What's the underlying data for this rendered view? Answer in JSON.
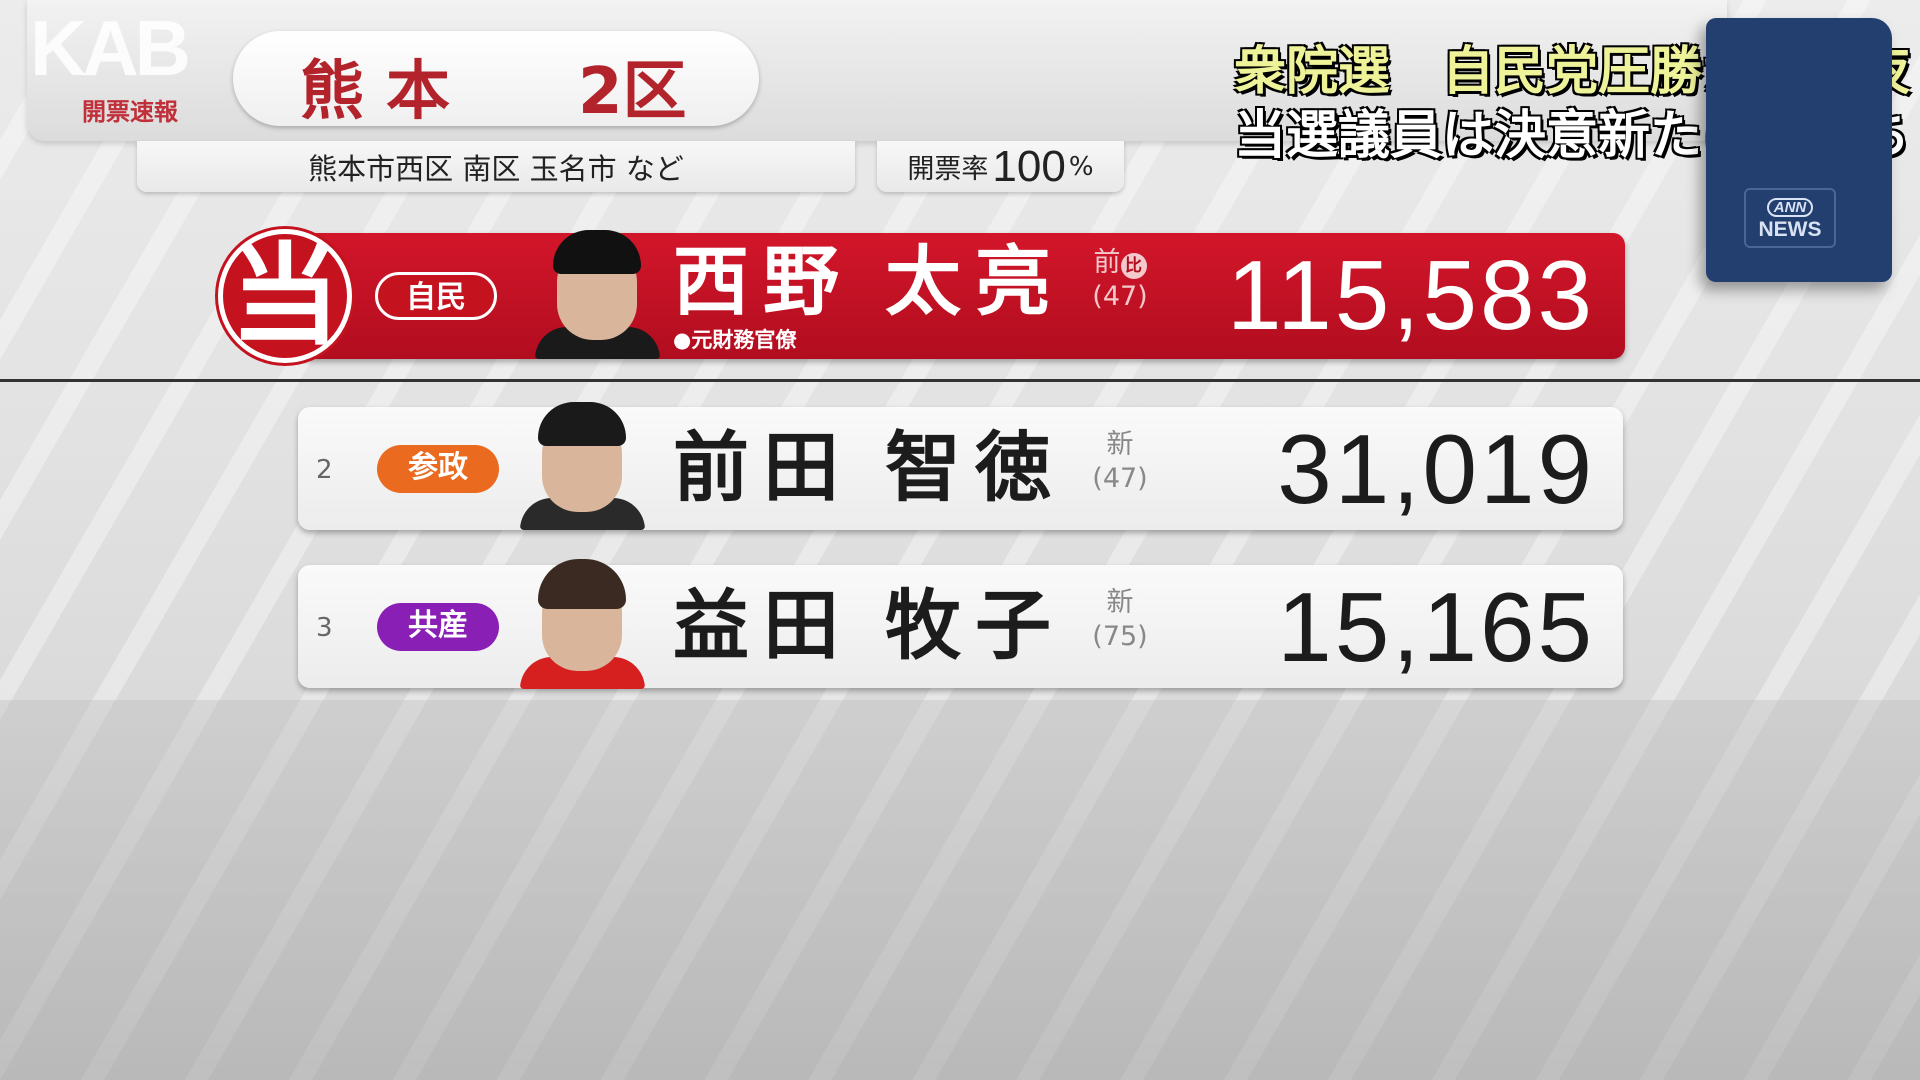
{
  "header": {
    "watermark": "KAB",
    "flash_label": "開票速報",
    "prefecture": "熊本",
    "district": "2区",
    "area": "熊本市西区 南区 玉名市 など",
    "rate_label": "開票率",
    "rate_value": "100",
    "rate_unit": "%"
  },
  "headline": {
    "line1": "衆院選　自民党圧勝から一夜",
    "line2": "当選議員は決意新たに辻立ち"
  },
  "logo": {
    "top": "ANN",
    "bottom": "NEWS"
  },
  "winner_mark": "当",
  "candidates": [
    {
      "rank": "",
      "party": "自民",
      "party_color": "#c4121f",
      "family": "西野",
      "given": "太亮",
      "status": "前",
      "status_extra": "比",
      "age": "(47)",
      "note": "●元財務官僚",
      "votes": "115,583",
      "elected": true
    },
    {
      "rank": "2",
      "party": "参政",
      "party_color": "#ea6a20",
      "family": "前田",
      "given": "智徳",
      "status": "新",
      "age": "(47)",
      "votes": "31,019",
      "elected": false
    },
    {
      "rank": "3",
      "party": "共産",
      "party_color": "#8a1fb5",
      "family": "益田",
      "given": "牧子",
      "status": "新",
      "age": "(75)",
      "votes": "15,165",
      "elected": false
    }
  ]
}
